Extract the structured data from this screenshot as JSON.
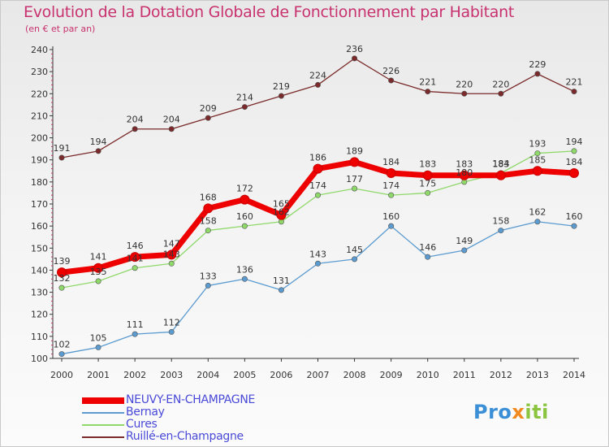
{
  "title": "Evolution de la Dotation Globale de Fonctionnement par Habitant",
  "subtitle": "(en € et par an)",
  "brand": {
    "part1": "Pro",
    "part2": "x",
    "part3": "iti"
  },
  "chart_data": {
    "type": "line",
    "categories": [
      "2000",
      "2001",
      "2002",
      "2003",
      "2004",
      "2005",
      "2006",
      "2007",
      "2008",
      "2009",
      "2010",
      "2011",
      "2012",
      "2013",
      "2014"
    ],
    "ylim": [
      100,
      240
    ],
    "yticks": [
      100,
      110,
      120,
      130,
      140,
      150,
      160,
      170,
      180,
      190,
      200,
      210,
      220,
      230,
      240
    ],
    "grid": false,
    "legend_position": "bottom-left",
    "series": [
      {
        "name": "Ruillé-en-Champagne",
        "color": "#7a2a2a",
        "values": [
          191,
          194,
          204,
          204,
          209,
          214,
          219,
          224,
          236,
          226,
          221,
          220,
          220,
          229,
          221
        ]
      },
      {
        "name": "Cures",
        "color": "#8fd86a",
        "values": [
          132,
          135,
          141,
          143,
          158,
          160,
          162,
          174,
          177,
          174,
          175,
          180,
          184,
          193,
          194
        ]
      },
      {
        "name": "Bernay",
        "color": "#5b9bd0",
        "values": [
          102,
          105,
          111,
          112,
          133,
          136,
          131,
          143,
          145,
          160,
          146,
          149,
          158,
          162,
          160
        ]
      },
      {
        "name": "NEUVY-EN-CHAMPAGNE",
        "color": "#ee0000",
        "values": [
          139,
          141,
          146,
          147,
          168,
          172,
          165,
          186,
          189,
          184,
          183,
          183,
          183,
          185,
          184
        ]
      }
    ]
  },
  "legend": [
    {
      "label": "NEUVY-EN-CHAMPAGNE",
      "color": "#ee0000"
    },
    {
      "label": "Bernay",
      "color": "#5b9bd0"
    },
    {
      "label": "Cures",
      "color": "#8fd86a"
    },
    {
      "label": "Ruillé-en-Champagne",
      "color": "#7a2a2a"
    }
  ]
}
